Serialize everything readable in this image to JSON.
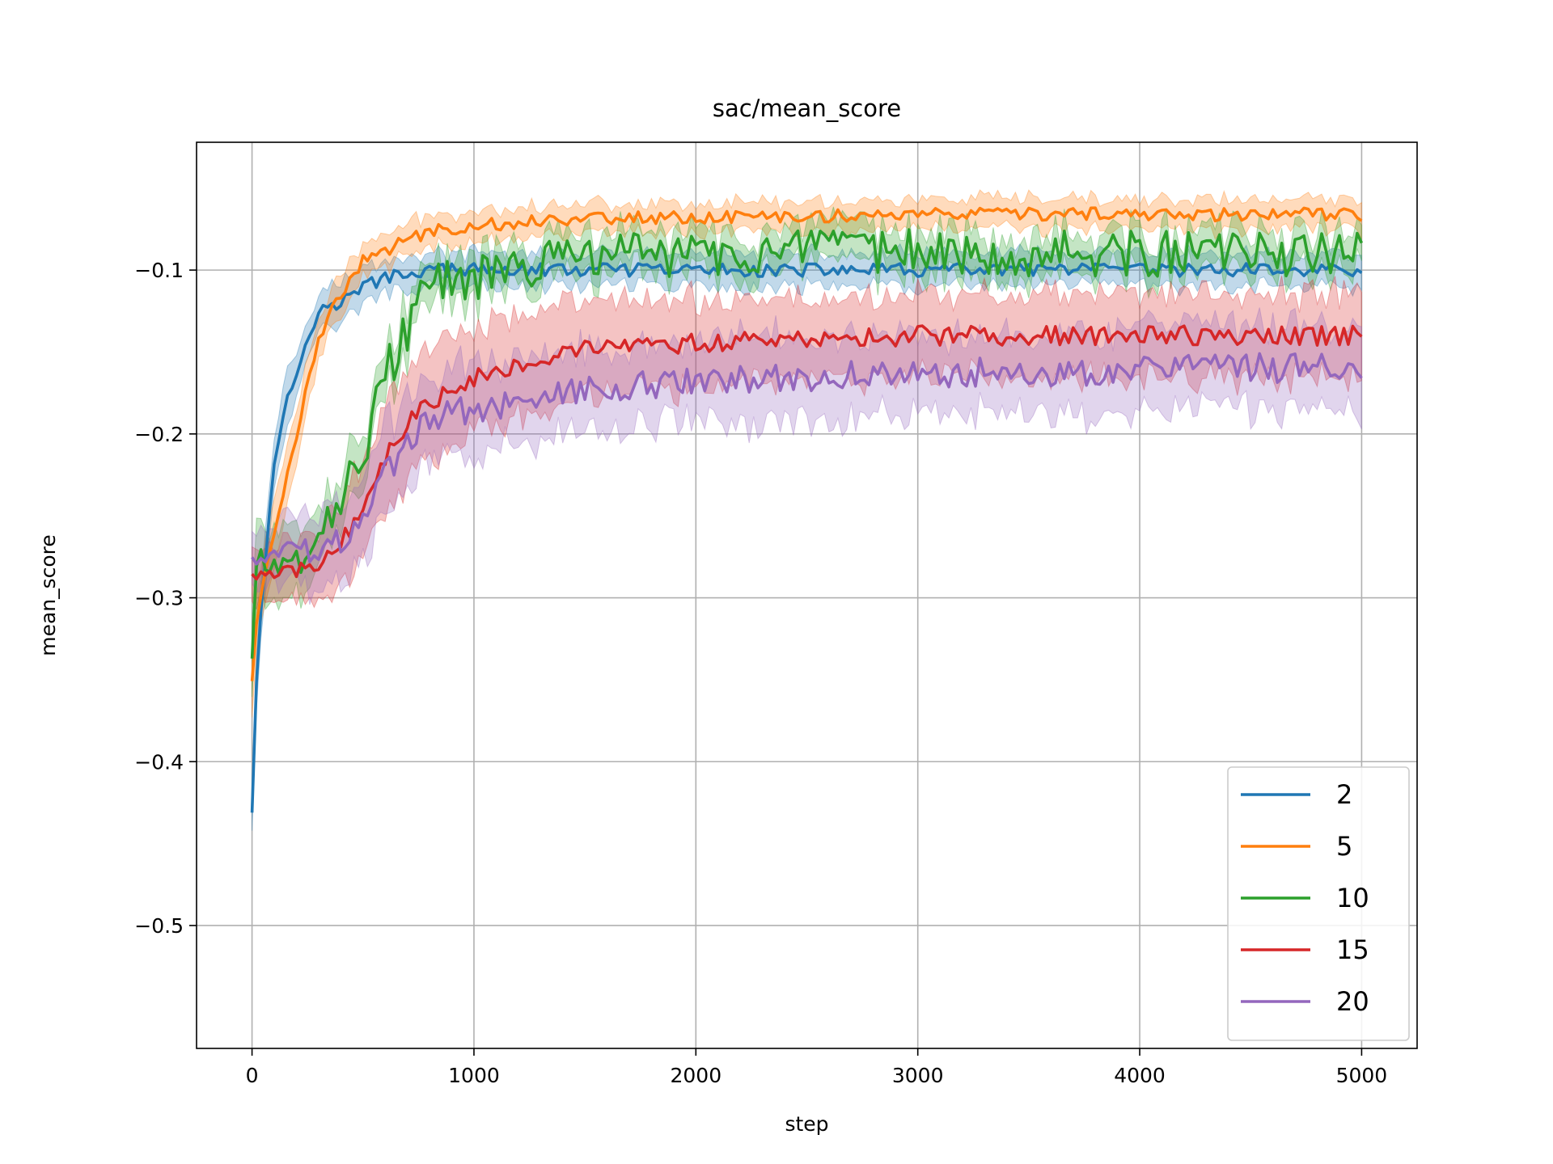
{
  "chart_data": {
    "type": "line",
    "title": "sac/mean_score",
    "xlabel": "step",
    "ylabel": "mean_score",
    "xlim": [
      -250,
      5250
    ],
    "ylim": [
      -0.575,
      -0.022
    ],
    "xticks": [
      0,
      1000,
      2000,
      3000,
      4000,
      5000
    ],
    "xtick_labels": [
      "0",
      "1000",
      "2000",
      "3000",
      "4000",
      "5000"
    ],
    "yticks": [
      -0.5,
      -0.4,
      -0.3,
      -0.2,
      -0.1
    ],
    "ytick_labels": [
      "−0.5",
      "−0.4",
      "−0.3",
      "−0.2",
      "−0.1"
    ],
    "grid": true,
    "legend_position": "lower right",
    "shaded_band": "spread across runs",
    "series": [
      {
        "name": "2",
        "color": "#1f77b4",
        "x": [
          0,
          25,
          50,
          100,
          150,
          200,
          250,
          300,
          400,
          500,
          600,
          700,
          800,
          1000,
          1250,
          1500,
          2000,
          2500,
          3000,
          3500,
          4000,
          4500,
          5000
        ],
        "y": [
          -0.43,
          -0.33,
          -0.29,
          -0.22,
          -0.18,
          -0.165,
          -0.14,
          -0.125,
          -0.12,
          -0.11,
          -0.105,
          -0.102,
          -0.1,
          -0.1,
          -0.1,
          -0.1,
          -0.1,
          -0.1,
          -0.1,
          -0.1,
          -0.1,
          -0.1,
          -0.1
        ],
        "band": [
          0.014,
          0.02,
          0.02,
          0.018,
          0.016,
          0.015,
          0.014,
          0.013,
          0.012,
          0.011,
          0.011,
          0.01,
          0.01,
          0.01,
          0.01,
          0.01,
          0.01,
          0.01,
          0.01,
          0.01,
          0.01,
          0.01,
          0.01
        ],
        "noise": 0.004
      },
      {
        "name": "5",
        "color": "#ff7f0e",
        "x": [
          0,
          25,
          50,
          100,
          150,
          200,
          250,
          300,
          400,
          500,
          600,
          700,
          800,
          1000,
          1250,
          1500,
          2000,
          2500,
          3000,
          3500,
          4000,
          4500,
          5000
        ],
        "y": [
          -0.35,
          -0.31,
          -0.29,
          -0.26,
          -0.23,
          -0.2,
          -0.17,
          -0.14,
          -0.115,
          -0.095,
          -0.088,
          -0.082,
          -0.076,
          -0.073,
          -0.07,
          -0.068,
          -0.068,
          -0.067,
          -0.066,
          -0.066,
          -0.066,
          -0.066,
          -0.066
        ],
        "band": [
          0.018,
          0.022,
          0.02,
          0.018,
          0.016,
          0.014,
          0.013,
          0.012,
          0.011,
          0.01,
          0.01,
          0.01,
          0.009,
          0.009,
          0.009,
          0.009,
          0.009,
          0.009,
          0.009,
          0.009,
          0.009,
          0.009,
          0.009
        ],
        "noise": 0.004
      },
      {
        "name": "10",
        "color": "#2ca02c",
        "x": [
          0,
          25,
          50,
          100,
          150,
          200,
          250,
          300,
          400,
          500,
          600,
          700,
          800,
          1000,
          1250,
          1500,
          2000,
          2500,
          3000,
          3500,
          4000,
          4500,
          5000
        ],
        "y": [
          -0.335,
          -0.27,
          -0.275,
          -0.28,
          -0.285,
          -0.275,
          -0.265,
          -0.255,
          -0.24,
          -0.21,
          -0.165,
          -0.135,
          -0.11,
          -0.105,
          -0.098,
          -0.09,
          -0.09,
          -0.09,
          -0.088,
          -0.09,
          -0.09,
          -0.09,
          -0.09
        ],
        "band": [
          0.02,
          0.025,
          0.024,
          0.022,
          0.02,
          0.018,
          0.017,
          0.016,
          0.015,
          0.015,
          0.015,
          0.014,
          0.013,
          0.012,
          0.012,
          0.012,
          0.012,
          0.012,
          0.012,
          0.012,
          0.012,
          0.012,
          0.012
        ],
        "noise": 0.014
      },
      {
        "name": "15",
        "color": "#d62728",
        "x": [
          0,
          25,
          50,
          100,
          150,
          200,
          250,
          300,
          400,
          500,
          600,
          700,
          800,
          1000,
          1250,
          1500,
          2000,
          2500,
          3000,
          3500,
          4000,
          4500,
          5000
        ],
        "y": [
          -0.285,
          -0.288,
          -0.287,
          -0.285,
          -0.284,
          -0.283,
          -0.282,
          -0.28,
          -0.265,
          -0.245,
          -0.215,
          -0.195,
          -0.18,
          -0.165,
          -0.155,
          -0.148,
          -0.145,
          -0.142,
          -0.14,
          -0.14,
          -0.14,
          -0.14,
          -0.14
        ],
        "band": [
          0.015,
          0.016,
          0.016,
          0.017,
          0.018,
          0.019,
          0.02,
          0.022,
          0.026,
          0.03,
          0.033,
          0.035,
          0.034,
          0.032,
          0.03,
          0.028,
          0.026,
          0.025,
          0.025,
          0.025,
          0.025,
          0.025,
          0.025
        ],
        "noise": 0.006
      },
      {
        "name": "20",
        "color": "#9467bd",
        "x": [
          0,
          25,
          50,
          100,
          150,
          200,
          250,
          300,
          400,
          500,
          600,
          700,
          800,
          1000,
          1250,
          1500,
          2000,
          2500,
          3000,
          3500,
          4000,
          4500,
          5000
        ],
        "y": [
          -0.275,
          -0.274,
          -0.273,
          -0.272,
          -0.272,
          -0.272,
          -0.272,
          -0.272,
          -0.265,
          -0.25,
          -0.225,
          -0.205,
          -0.19,
          -0.185,
          -0.178,
          -0.172,
          -0.168,
          -0.165,
          -0.163,
          -0.162,
          -0.161,
          -0.16,
          -0.16
        ],
        "band": [
          0.015,
          0.016,
          0.017,
          0.018,
          0.019,
          0.02,
          0.021,
          0.022,
          0.024,
          0.026,
          0.028,
          0.028,
          0.028,
          0.027,
          0.026,
          0.026,
          0.025,
          0.025,
          0.025,
          0.025,
          0.025,
          0.025,
          0.025
        ],
        "noise": 0.009
      }
    ]
  }
}
